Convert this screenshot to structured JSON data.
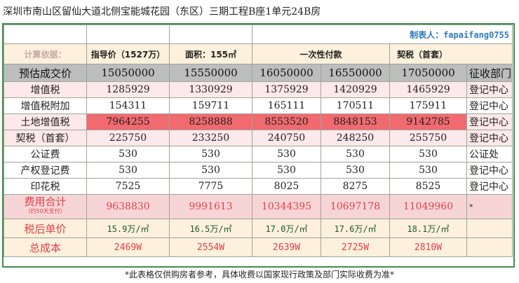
{
  "title": "深圳市南山区留仙大道北侧宝能城花园（东区）三期工程B座1单元24B房",
  "maker": "制表人：fapaifang0755",
  "basis": {
    "label": "计算依据：",
    "items": [
      "指导价（1527万）",
      "面积：155㎡",
      "一次性付款",
      "契税（首套）"
    ]
  },
  "rows": [
    {
      "label": "预估成交价",
      "values": [
        "15050000",
        "15550000",
        "16050000",
        "16550000",
        "17050000"
      ],
      "dept": "征收部门"
    },
    {
      "label": "增值税",
      "values": [
        "1285929",
        "1330929",
        "1375929",
        "1420929",
        "1465929"
      ],
      "dept": "登记中心"
    },
    {
      "label": "增值税附加",
      "values": [
        "154311",
        "159711",
        "165111",
        "170511",
        "175911"
      ],
      "dept": "登记中心"
    },
    {
      "label": "土地增值税",
      "values": [
        "7964255",
        "8258888",
        "8553520",
        "8848153",
        "9142785"
      ],
      "dept": "登记中心"
    },
    {
      "label": "契税（首套）",
      "values": [
        "225750",
        "233250",
        "240750",
        "248250",
        "255750"
      ],
      "dept": "登记中心"
    },
    {
      "label": "公证费",
      "values": [
        "530",
        "530",
        "530",
        "530",
        "530"
      ],
      "dept": "公证处"
    },
    {
      "label": "产权登记费",
      "values": [
        "530",
        "530",
        "530",
        "530",
        "530"
      ],
      "dept": "登记中心"
    },
    {
      "label": "印花税",
      "values": [
        "7525",
        "7775",
        "8025",
        "8275",
        "8525"
      ],
      "dept": "登记中心"
    }
  ],
  "total": {
    "label": "费用合计",
    "sub": "（约50天支付）",
    "values": [
      "9638830",
      "9991613",
      "10344395",
      "10697178",
      "11049960"
    ],
    "note": "*"
  },
  "unit_price": {
    "label": "税后单价",
    "values": [
      "15.9万/㎡",
      "16.5万/㎡",
      "17.0万/㎡",
      "17.6万/㎡",
      "18.1万/㎡"
    ]
  },
  "total_cost": {
    "label": "总成本",
    "values": [
      "2469W",
      "2554W",
      "2639W",
      "2725W",
      "2810W"
    ]
  },
  "footnote": "*此表格仅供购房者参考，具体收费以国家现行政策及部门实际收费为准*"
}
